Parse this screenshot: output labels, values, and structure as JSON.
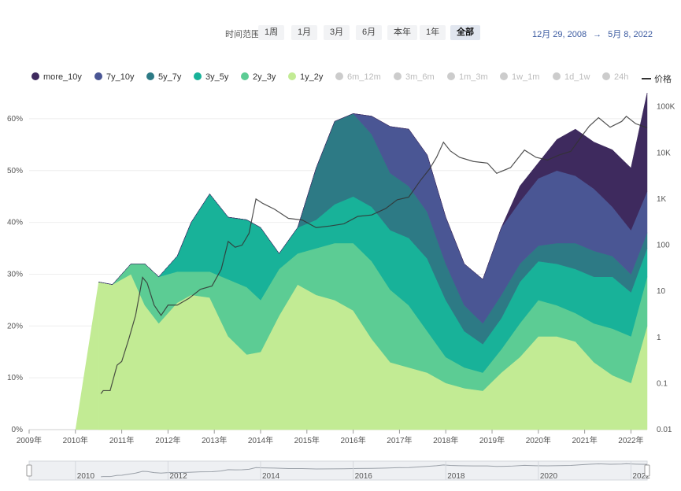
{
  "toolbar": {
    "range_label": "时间范围",
    "buttons": [
      "1周",
      "1月",
      "3月",
      "6月",
      "本年",
      "1年",
      "全部"
    ],
    "active": "全部",
    "date_start": "12月 29, 2008",
    "arrow": "→",
    "date_end": "5月 8, 2022"
  },
  "legend": [
    {
      "name": "more_10y",
      "color": "#3e2a5e",
      "active": true
    },
    {
      "name": "7y_10y",
      "color": "#4a5694",
      "active": true
    },
    {
      "name": "5y_7y",
      "color": "#2d7a85",
      "active": true
    },
    {
      "name": "3y_5y",
      "color": "#18b299",
      "active": true
    },
    {
      "name": "2y_3y",
      "color": "#5ccc94",
      "active": true
    },
    {
      "name": "1y_2y",
      "color": "#c2eb94",
      "active": true
    },
    {
      "name": "6m_12m",
      "color": "#cccccc",
      "active": false
    },
    {
      "name": "3m_6m",
      "color": "#cccccc",
      "active": false
    },
    {
      "name": "1m_3m",
      "color": "#cccccc",
      "active": false
    },
    {
      "name": "1w_1m",
      "color": "#cccccc",
      "active": false
    },
    {
      "name": "1d_1w",
      "color": "#cccccc",
      "active": false
    },
    {
      "name": "24h",
      "color": "#cccccc",
      "active": false
    },
    {
      "name": "价格",
      "color": "#333333",
      "active": true,
      "type": "line"
    }
  ],
  "chart_data": {
    "type": "area",
    "stacked": true,
    "x": [
      2010.5,
      2010.8,
      2011.2,
      2011.5,
      2011.8,
      2012.2,
      2012.5,
      2012.9,
      2013.3,
      2013.7,
      2014.0,
      2014.4,
      2014.8,
      2015.2,
      2015.6,
      2016.0,
      2016.4,
      2016.8,
      2017.2,
      2017.6,
      2018.0,
      2018.4,
      2018.8,
      2019.2,
      2019.6,
      2020.0,
      2020.4,
      2020.8,
      2021.2,
      2021.6,
      2022.0,
      2022.35
    ],
    "series": [
      {
        "name": "1y_2y",
        "color": "#c2eb94",
        "values": [
          28.5,
          28.0,
          30.0,
          24.0,
          20.5,
          24.5,
          26.0,
          25.5,
          18.0,
          14.5,
          15.0,
          22.0,
          28.0,
          26.0,
          25.0,
          23.0,
          17.5,
          13.0,
          12.0,
          11.0,
          9.0,
          8.0,
          7.5,
          11.0,
          14.0,
          18.0,
          18.0,
          17.0,
          13.0,
          10.5,
          9.0,
          20.0
        ]
      },
      {
        "name": "2y_3y",
        "color": "#5ccc94",
        "values": [
          0,
          0,
          2.0,
          8.0,
          9.0,
          6.0,
          4.5,
          5.0,
          11.0,
          13.0,
          10.0,
          9.0,
          6.0,
          9.0,
          11.0,
          13.0,
          15.0,
          14.0,
          12.0,
          8.0,
          5.0,
          4.0,
          3.5,
          4.5,
          6.5,
          7.0,
          6.0,
          5.5,
          7.5,
          9.0,
          9.0,
          9.5
        ]
      },
      {
        "name": "3y_5y",
        "color": "#18b299",
        "values": [
          0,
          0,
          0,
          0,
          0,
          3.0,
          9.5,
          15.0,
          12.0,
          13.0,
          14.0,
          3.0,
          5.0,
          5.5,
          7.5,
          9.0,
          10.5,
          11.5,
          13.0,
          14.0,
          11.0,
          7.0,
          5.5,
          6.0,
          8.0,
          7.5,
          8.0,
          8.5,
          9.0,
          10.0,
          8.5,
          5.5
        ]
      },
      {
        "name": "5y_7y",
        "color": "#2d7a85",
        "values": [
          0,
          0,
          0,
          0,
          0,
          0,
          0,
          0,
          0,
          0,
          0,
          0,
          0,
          10.0,
          16.0,
          16.0,
          14.0,
          11.0,
          10.0,
          9.0,
          7.0,
          5.0,
          4.0,
          4.5,
          3.5,
          3.0,
          4.0,
          5.0,
          5.0,
          4.0,
          3.5,
          3.0
        ]
      },
      {
        "name": "7y_10y",
        "color": "#4a5694",
        "values": [
          0,
          0,
          0,
          0,
          0,
          0,
          0,
          0,
          0,
          0,
          0,
          0,
          0,
          0,
          0,
          0,
          3.5,
          9.0,
          11.0,
          11.0,
          9.0,
          8.0,
          8.5,
          13.0,
          12.0,
          13.0,
          14.0,
          13.0,
          12.0,
          9.5,
          8.5,
          8.0
        ]
      },
      {
        "name": "more_10y",
        "color": "#3e2a5e",
        "values": [
          0,
          0,
          0,
          0,
          0,
          0,
          0,
          0,
          0,
          0,
          0,
          0,
          0,
          0,
          0,
          0,
          0,
          0,
          0,
          0,
          0,
          0,
          0,
          0,
          3.0,
          3.0,
          6.0,
          9.0,
          9.0,
          11.0,
          12.0,
          19.0
        ]
      }
    ],
    "price": {
      "name": "价格",
      "color": "#333333",
      "x": [
        2010.55,
        2010.6,
        2010.75,
        2010.9,
        2011.0,
        2011.15,
        2011.3,
        2011.45,
        2011.55,
        2011.7,
        2011.85,
        2012.0,
        2012.2,
        2012.45,
        2012.7,
        2012.95,
        2013.15,
        2013.3,
        2013.45,
        2013.6,
        2013.75,
        2013.9,
        2014.05,
        2014.3,
        2014.6,
        2014.9,
        2015.2,
        2015.5,
        2015.8,
        2016.1,
        2016.4,
        2016.7,
        2016.95,
        2017.2,
        2017.45,
        2017.65,
        2017.8,
        2017.95,
        2018.1,
        2018.3,
        2018.6,
        2018.9,
        2019.1,
        2019.4,
        2019.7,
        2019.95,
        2020.2,
        2020.45,
        2020.7,
        2020.95,
        2021.1,
        2021.3,
        2021.55,
        2021.8,
        2021.9,
        2022.1,
        2022.35
      ],
      "values": [
        0.06,
        0.07,
        0.07,
        0.25,
        0.3,
        0.9,
        3,
        20,
        15,
        5,
        3,
        5,
        5,
        7,
        11,
        13,
        30,
        120,
        90,
        100,
        180,
        1000,
        800,
        600,
        380,
        350,
        240,
        260,
        290,
        420,
        450,
        620,
        960,
        1100,
        2500,
        4500,
        8000,
        17000,
        11000,
        8000,
        6500,
        6000,
        3600,
        4800,
        11500,
        8000,
        7000,
        9000,
        10800,
        24000,
        38000,
        58000,
        36000,
        48000,
        62000,
        43000,
        35000
      ]
    },
    "x_ticks": [
      "2009年",
      "2010年",
      "2011年",
      "2012年",
      "2013年",
      "2014年",
      "2015年",
      "2016年",
      "2017年",
      "2018年",
      "2019年",
      "2020年",
      "2021年",
      "2022年"
    ],
    "y_ticks_left": [
      "0%",
      "10%",
      "20%",
      "30%",
      "40%",
      "50%",
      "60%"
    ],
    "y_ticks_right": [
      "0.01",
      "0.1",
      "1",
      "10",
      "100",
      "1K",
      "10K",
      "100K"
    ],
    "ylim_left": [
      0,
      65
    ],
    "ylim_right_log": [
      0.01,
      200000
    ],
    "xlim": [
      2009,
      2022.35
    ],
    "grid": true,
    "legend_position": "top",
    "zoom_labels": [
      "2010",
      "2012",
      "2014",
      "2016",
      "2018",
      "2020",
      "2022"
    ]
  }
}
